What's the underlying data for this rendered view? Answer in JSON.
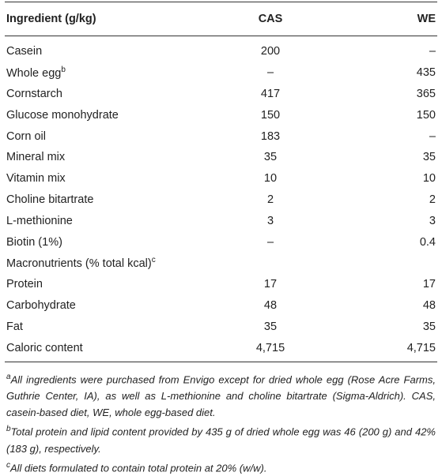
{
  "table": {
    "header": [
      "Ingredient (g/kg)",
      "CAS",
      "WE"
    ],
    "rows": [
      {
        "label": "Casein",
        "cas": "200",
        "we": "–"
      },
      {
        "label": "Whole egg",
        "sup": "b",
        "cas": "–",
        "we": "435"
      },
      {
        "label": "Cornstarch",
        "cas": "417",
        "we": "365"
      },
      {
        "label": "Glucose monohydrate",
        "cas": "150",
        "we": "150"
      },
      {
        "label": "Corn oil",
        "cas": "183",
        "we": "–"
      },
      {
        "label": "Mineral mix",
        "cas": "35",
        "we": "35"
      },
      {
        "label": "Vitamin mix",
        "cas": "10",
        "we": "10"
      },
      {
        "label": "Choline bitartrate",
        "cas": "2",
        "we": "2"
      },
      {
        "label": "L-methionine",
        "cas": "3",
        "we": "3"
      },
      {
        "label": "Biotin (1%)",
        "cas": "–",
        "we": "0.4"
      },
      {
        "label": "Macronutrients (% total kcal)",
        "sup": "c"
      },
      {
        "label": "Protein",
        "cas": "17",
        "we": "17"
      },
      {
        "label": "Carbohydrate",
        "cas": "48",
        "we": "48"
      },
      {
        "label": "Fat",
        "cas": "35",
        "we": "35"
      },
      {
        "label": "Caloric content",
        "cas": "4,715",
        "we": "4,715"
      }
    ]
  },
  "footnotes": [
    {
      "mark": "a",
      "text": "All ingredients were purchased from Envigo except for dried whole egg (Rose Acre Farms, Guthrie Center, IA), as well as L-methionine and choline bitartrate (Sigma-Aldrich). CAS, casein-based diet, WE, whole egg-based diet."
    },
    {
      "mark": "b",
      "text": "Total protein and lipid content provided by 435 g of dried whole egg was 46 (200 g) and 42% (183 g), respectively."
    },
    {
      "mark": "c",
      "text": "All diets formulated to contain total protein at 20% (w/w)."
    }
  ]
}
